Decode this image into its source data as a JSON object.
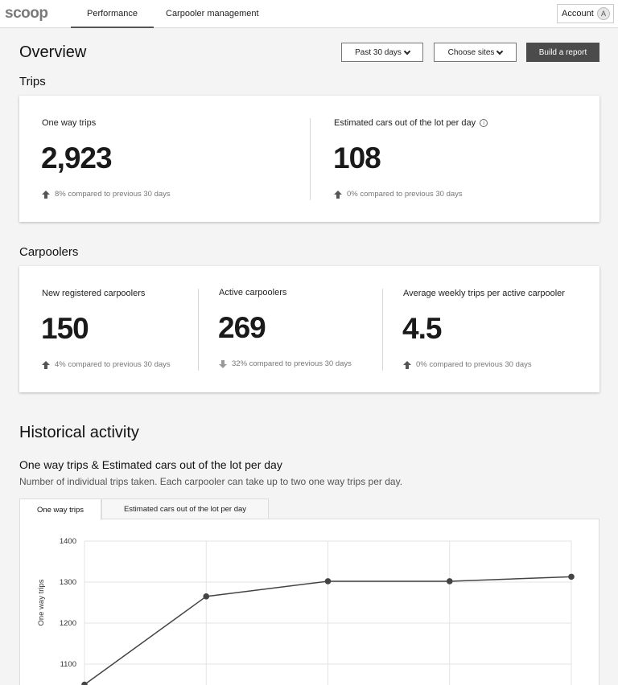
{
  "brand": {
    "logo": "scoop"
  },
  "nav": {
    "tabs": [
      "Performance",
      "Carpooler management"
    ],
    "account_label": "Account",
    "avatar_initial": "A"
  },
  "overview": {
    "title": "Overview",
    "filters": {
      "date_range": "Past 30 days",
      "sites": "Choose sites"
    },
    "build_report": "Build a report"
  },
  "trips": {
    "heading": "Trips",
    "stats": [
      {
        "label": "One way trips",
        "value": "2,923",
        "change": "8% compared to previous 30 days",
        "direction": "up"
      },
      {
        "label": "Estimated cars out of the lot per day",
        "value": "108",
        "change": "0% compared to previous 30 days",
        "direction": "up",
        "info_icon": "info-icon"
      }
    ]
  },
  "carpoolers": {
    "heading": "Carpoolers",
    "stats": [
      {
        "label": "New registered carpoolers",
        "value": "150",
        "change": "4% compared to previous 30 days",
        "direction": "up"
      },
      {
        "label": "Active carpoolers",
        "value": "269",
        "change": "32% compared to previous 30 days",
        "direction": "down"
      },
      {
        "label": "Average weekly trips per active carpooler",
        "value": "4.5",
        "change": "0% compared to previous 30 days",
        "direction": "up"
      }
    ]
  },
  "historical": {
    "heading": "Historical activity",
    "chart_title": "One way trips & Estimated cars out of the lot per day",
    "chart_subtitle": "Number of individual trips taken. Each carpooler can take up to two one way trips per day.",
    "tabs": [
      "One way trips",
      "Estimated cars out of the lot per day"
    ]
  },
  "colors": {
    "primary_dark": "#4b4b4b",
    "line": "#444444",
    "grid": "#e3e3e3"
  },
  "chart_data": {
    "type": "line",
    "ylabel": "One way trips",
    "yticks": [
      1400,
      1300,
      1200,
      1100
    ],
    "ylim": [
      1050,
      1400
    ],
    "grid": true,
    "series": [
      {
        "values": [
          1050,
          1265,
          1302,
          1302,
          1313
        ]
      }
    ]
  }
}
